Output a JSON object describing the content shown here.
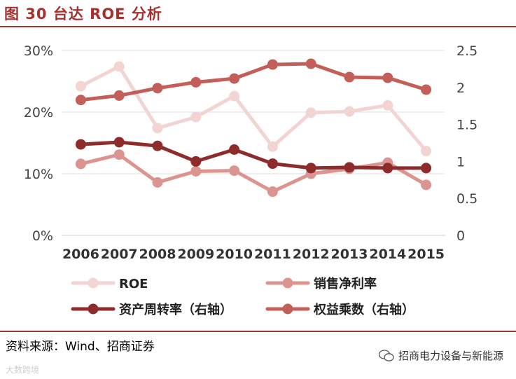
{
  "header": {
    "title": "图 30 台达 ROE 分析"
  },
  "footer": {
    "source": "资料来源：Wind、招商证券",
    "wechat_label": "招商电力设备与新能源",
    "watermark": "大数跨境"
  },
  "colors": {
    "accent": "#A5322E",
    "roe": "#F2D5D3",
    "net_margin": "#DC9490",
    "asset_turnover": "#8E2B2B",
    "equity_multiplier": "#C35E58"
  },
  "chart_data": {
    "type": "line",
    "categories": [
      "2006",
      "2007",
      "2008",
      "2009",
      "2010",
      "2011",
      "2012",
      "2013",
      "2014",
      "2015"
    ],
    "left_axis": {
      "ticks": [
        "0%",
        "10%",
        "20%",
        "30%"
      ],
      "tick_values": [
        0,
        0.1,
        0.2,
        0.3
      ],
      "range": [
        0,
        0.3
      ]
    },
    "right_axis": {
      "ticks": [
        "0",
        "0.5",
        "1",
        "1.5",
        "2",
        "2.5"
      ],
      "tick_values": [
        0,
        0.5,
        1,
        1.5,
        2,
        2.5
      ],
      "range": [
        0,
        2.5
      ]
    },
    "grid": "horizontal",
    "legend_position": "bottom",
    "series": [
      {
        "name": "ROE",
        "axis": "left",
        "color": "#F2D5D3",
        "values": [
          0.242,
          0.274,
          0.174,
          0.192,
          0.226,
          0.144,
          0.199,
          0.201,
          0.211,
          0.137
        ]
      },
      {
        "name": "销售净利率",
        "axis": "left",
        "color": "#DC9490",
        "values": [
          0.116,
          0.131,
          0.086,
          0.104,
          0.105,
          0.071,
          0.1,
          0.108,
          0.118,
          0.082
        ]
      },
      {
        "name": "资产周转率（右轴）",
        "axis": "right",
        "color": "#8E2B2B",
        "values": [
          1.23,
          1.26,
          1.21,
          1.0,
          1.16,
          0.97,
          0.91,
          0.92,
          0.91,
          0.91
        ]
      },
      {
        "name": "权益乘数（右轴）",
        "axis": "right",
        "color": "#C35E58",
        "values": [
          1.83,
          1.89,
          1.99,
          2.07,
          2.12,
          2.31,
          2.32,
          2.14,
          2.13,
          1.97
        ]
      }
    ]
  }
}
